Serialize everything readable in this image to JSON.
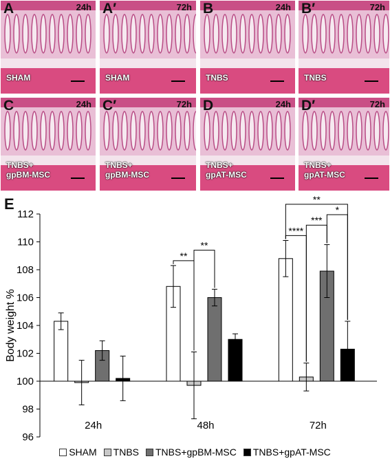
{
  "colors": {
    "epithelium": "#c94f86",
    "mucosa": "#e9bfd6",
    "submucosa": "#f3e4ec",
    "muscle": "#d94b80"
  },
  "panels": [
    {
      "letter": "A",
      "time": "24h",
      "label": "SHAM"
    },
    {
      "letter": "A′",
      "time": "72h",
      "label": "SHAM"
    },
    {
      "letter": "B",
      "time": "24h",
      "label": "TNBS"
    },
    {
      "letter": "B′",
      "time": "72h",
      "label": "TNBS"
    },
    {
      "letter": "C",
      "time": "24h",
      "label": "TNBS+\ngpBM-MSC"
    },
    {
      "letter": "C′",
      "time": "72h",
      "label": "TNBS+\ngpBM-MSC"
    },
    {
      "letter": "D",
      "time": "24h",
      "label": "TNBS+\ngpAT-MSC"
    },
    {
      "letter": "D′",
      "time": "72h",
      "label": "TNBS+\ngpAT-MSC"
    }
  ],
  "panel_e_letter": "E",
  "chart_data": {
    "type": "bar",
    "ylabel": "Body weight %",
    "xlabel": "",
    "ylim": [
      96,
      112
    ],
    "yticks": [
      96,
      98,
      100,
      102,
      104,
      106,
      108,
      110,
      112
    ],
    "baseline": 100,
    "categories": [
      "24h",
      "48h",
      "72h"
    ],
    "series": [
      {
        "name": "SHAM",
        "color": "#ffffff",
        "values": [
          104.3,
          106.8,
          108.8
        ],
        "errors": [
          0.6,
          1.5,
          1.3
        ]
      },
      {
        "name": "TNBS",
        "color": "#c8c8c8",
        "values": [
          99.9,
          99.7,
          100.3
        ],
        "errors": [
          1.6,
          2.4,
          1.0
        ]
      },
      {
        "name": "TNBS+gpBM-MSC",
        "color": "#6f6f6f",
        "values": [
          102.2,
          106.0,
          107.9
        ],
        "errors": [
          0.7,
          0.6,
          1.9
        ]
      },
      {
        "name": "TNBS+gpAT-MSC",
        "color": "#000000",
        "values": [
          100.2,
          103.0,
          102.3
        ],
        "errors": [
          1.6,
          0.4,
          2.0
        ]
      }
    ],
    "significance": [
      {
        "category": "48h",
        "from": "SHAM",
        "to": "TNBS",
        "label": "**"
      },
      {
        "category": "48h",
        "from": "TNBS",
        "to": "TNBS+gpBM-MSC",
        "label": "**"
      },
      {
        "category": "72h",
        "from": "SHAM",
        "to": "TNBS",
        "label": "****"
      },
      {
        "category": "72h",
        "from": "TNBS",
        "to": "TNBS+gpBM-MSC",
        "label": "***"
      },
      {
        "category": "72h",
        "from": "TNBS+gpBM-MSC",
        "to": "TNBS+gpAT-MSC",
        "label": "*"
      },
      {
        "category": "72h",
        "from": "SHAM",
        "to": "TNBS+gpAT-MSC",
        "label": "**"
      }
    ],
    "legend_position": "bottom"
  }
}
